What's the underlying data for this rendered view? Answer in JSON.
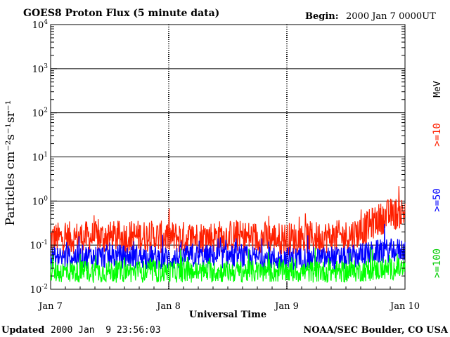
{
  "chart_data": {
    "type": "line",
    "title": "GOES8 Proton Flux (5 minute data)",
    "begin_label": "Begin:",
    "begin_value": "2000 Jan 7 0000UT",
    "xlabel": "Universal Time",
    "ylabel": "Particles cm⁻²s⁻¹sr⁻¹",
    "y_scale": "log",
    "ylim": [
      0.01,
      10000
    ],
    "y_ticks": [
      {
        "base": "10",
        "exp": "-2",
        "value": 0.01
      },
      {
        "base": "10",
        "exp": "-1",
        "value": 0.1
      },
      {
        "base": "10",
        "exp": "0",
        "value": 1
      },
      {
        "base": "10",
        "exp": "1",
        "value": 10
      },
      {
        "base": "10",
        "exp": "2",
        "value": 100
      },
      {
        "base": "10",
        "exp": "3",
        "value": 1000
      },
      {
        "base": "10",
        "exp": "4",
        "value": 10000
      }
    ],
    "x_range": [
      "2000-01-07 00:00",
      "2000-01-10 00:00"
    ],
    "x_ticks": [
      {
        "label": "Jan 7",
        "x": "2000-01-07 00:00"
      },
      {
        "label": "Jan 8",
        "x": "2000-01-08 00:00"
      },
      {
        "label": "Jan 9",
        "x": "2000-01-09 00:00"
      },
      {
        "label": "Jan 10",
        "x": "2000-01-10 00:00"
      }
    ],
    "grid": "horizontal decades",
    "legend": "right side, vertical",
    "unit_label": "MeV",
    "series": [
      {
        "name": ">=10",
        "color": "#ff2000",
        "x": [
          "2000-01-07 00:00",
          "2000-01-07 06:00",
          "2000-01-07 12:00",
          "2000-01-07 18:00",
          "2000-01-08 00:00",
          "2000-01-08 06:00",
          "2000-01-08 12:00",
          "2000-01-08 18:00",
          "2000-01-09 00:00",
          "2000-01-09 06:00",
          "2000-01-09 12:00",
          "2000-01-09 15:00",
          "2000-01-09 18:00",
          "2000-01-09 21:00",
          "2000-01-10 00:00"
        ],
        "values": [
          0.14,
          0.15,
          0.15,
          0.16,
          0.15,
          0.15,
          0.16,
          0.15,
          0.14,
          0.15,
          0.16,
          0.2,
          0.35,
          0.5,
          0.55
        ]
      },
      {
        "name": ">=50",
        "color": "#0000ff",
        "x": [
          "2000-01-07 00:00",
          "2000-01-07 06:00",
          "2000-01-07 12:00",
          "2000-01-07 18:00",
          "2000-01-08 00:00",
          "2000-01-08 06:00",
          "2000-01-08 12:00",
          "2000-01-08 18:00",
          "2000-01-09 00:00",
          "2000-01-09 06:00",
          "2000-01-09 12:00",
          "2000-01-09 18:00",
          "2000-01-10 00:00"
        ],
        "values": [
          0.05,
          0.055,
          0.055,
          0.055,
          0.05,
          0.055,
          0.055,
          0.05,
          0.05,
          0.05,
          0.05,
          0.07,
          0.08
        ]
      },
      {
        "name": ">=100",
        "color": "#00ff00",
        "x": [
          "2000-01-07 00:00",
          "2000-01-07 12:00",
          "2000-01-08 00:00",
          "2000-01-08 12:00",
          "2000-01-09 00:00",
          "2000-01-09 12:00",
          "2000-01-10 00:00"
        ],
        "values": [
          0.025,
          0.025,
          0.025,
          0.025,
          0.025,
          0.025,
          0.03
        ]
      }
    ]
  },
  "footer": {
    "updated_label": "Updated",
    "updated_value": "2000 Jan  9 23:56:03",
    "source": "NOAA/SEC Boulder, CO USA"
  }
}
